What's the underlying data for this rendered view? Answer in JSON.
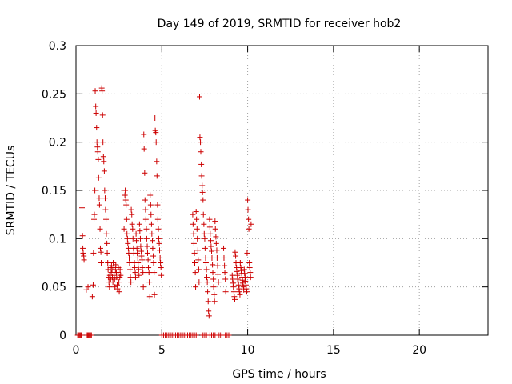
{
  "chart_data": {
    "type": "scatter",
    "title": "Day 149 of 2019, SRMTID for receiver hob2",
    "xlabel": "GPS time / hours",
    "ylabel": "SRMTID / TECUs",
    "xlim": [
      0,
      24
    ],
    "ylim": [
      0,
      0.3
    ],
    "x_ticks": [
      0,
      5,
      10,
      15,
      20
    ],
    "x_tick_labels": [
      "0",
      "5",
      "10",
      "15",
      "20"
    ],
    "y_ticks": [
      0,
      0.05,
      0.1,
      0.15,
      0.2,
      0.25,
      0.3
    ],
    "y_tick_labels": [
      "0",
      "0.05",
      "0.1",
      "0.15",
      "0.2",
      "0.25",
      "0.3"
    ],
    "grid": true,
    "marker": "+",
    "color": "#cc0000",
    "series": [
      {
        "name": "SRMTID",
        "points": [
          [
            0.1,
            0.0
          ],
          [
            0.15,
            0.0
          ],
          [
            0.2,
            0.0
          ],
          [
            0.25,
            0.0
          ],
          [
            0.3,
            0.0
          ],
          [
            0.65,
            0.0
          ],
          [
            0.7,
            0.0
          ],
          [
            0.75,
            0.0
          ],
          [
            0.8,
            0.0
          ],
          [
            0.85,
            0.0
          ],
          [
            0.9,
            0.0
          ],
          [
            0.35,
            0.132
          ],
          [
            0.38,
            0.103
          ],
          [
            0.4,
            0.09
          ],
          [
            0.42,
            0.085
          ],
          [
            0.45,
            0.082
          ],
          [
            0.47,
            0.078
          ],
          [
            0.6,
            0.047
          ],
          [
            0.7,
            0.05
          ],
          [
            0.95,
            0.04
          ],
          [
            1.0,
            0.052
          ],
          [
            1.02,
            0.085
          ],
          [
            1.05,
            0.12
          ],
          [
            1.07,
            0.125
          ],
          [
            1.1,
            0.15
          ],
          [
            1.12,
            0.253
          ],
          [
            1.15,
            0.237
          ],
          [
            1.17,
            0.23
          ],
          [
            1.2,
            0.215
          ],
          [
            1.22,
            0.2
          ],
          [
            1.25,
            0.195
          ],
          [
            1.27,
            0.19
          ],
          [
            1.3,
            0.182
          ],
          [
            1.32,
            0.163
          ],
          [
            1.35,
            0.142
          ],
          [
            1.37,
            0.135
          ],
          [
            1.4,
            0.11
          ],
          [
            1.42,
            0.09
          ],
          [
            1.45,
            0.086
          ],
          [
            1.47,
            0.075
          ],
          [
            1.5,
            0.256
          ],
          [
            1.52,
            0.253
          ],
          [
            1.55,
            0.228
          ],
          [
            1.57,
            0.2
          ],
          [
            1.6,
            0.185
          ],
          [
            1.62,
            0.18
          ],
          [
            1.65,
            0.17
          ],
          [
            1.67,
            0.15
          ],
          [
            1.7,
            0.142
          ],
          [
            1.72,
            0.13
          ],
          [
            1.75,
            0.12
          ],
          [
            1.77,
            0.105
          ],
          [
            1.8,
            0.095
          ],
          [
            1.82,
            0.085
          ],
          [
            1.85,
            0.075
          ],
          [
            1.87,
            0.068
          ],
          [
            1.9,
            0.06
          ],
          [
            1.92,
            0.055
          ],
          [
            1.95,
            0.05
          ],
          [
            1.97,
            0.062
          ],
          [
            2.0,
            0.07
          ],
          [
            2.02,
            0.058
          ],
          [
            2.05,
            0.065
          ],
          [
            2.07,
            0.072
          ],
          [
            2.1,
            0.068
          ],
          [
            2.12,
            0.06
          ],
          [
            2.15,
            0.055
          ],
          [
            2.17,
            0.075
          ],
          [
            2.2,
            0.07
          ],
          [
            2.22,
            0.062
          ],
          [
            2.25,
            0.058
          ],
          [
            2.27,
            0.05
          ],
          [
            2.3,
            0.068
          ],
          [
            2.32,
            0.073
          ],
          [
            2.35,
            0.065
          ],
          [
            2.37,
            0.06
          ],
          [
            2.4,
            0.052
          ],
          [
            2.42,
            0.048
          ],
          [
            2.45,
            0.065
          ],
          [
            2.47,
            0.07
          ],
          [
            2.5,
            0.055
          ],
          [
            2.52,
            0.045
          ],
          [
            2.55,
            0.06
          ],
          [
            2.57,
            0.068
          ],
          [
            2.6,
            0.062
          ],
          [
            2.8,
            0.11
          ],
          [
            2.85,
            0.145
          ],
          [
            2.87,
            0.15
          ],
          [
            2.9,
            0.14
          ],
          [
            2.92,
            0.135
          ],
          [
            2.95,
            0.12
          ],
          [
            2.97,
            0.105
          ],
          [
            3.0,
            0.1
          ],
          [
            3.02,
            0.095
          ],
          [
            3.05,
            0.09
          ],
          [
            3.07,
            0.085
          ],
          [
            3.1,
            0.08
          ],
          [
            3.12,
            0.075
          ],
          [
            3.15,
            0.068
          ],
          [
            3.17,
            0.06
          ],
          [
            3.2,
            0.055
          ],
          [
            3.22,
            0.13
          ],
          [
            3.25,
            0.125
          ],
          [
            3.27,
            0.115
          ],
          [
            3.3,
            0.11
          ],
          [
            3.32,
            0.1
          ],
          [
            3.35,
            0.09
          ],
          [
            3.37,
            0.085
          ],
          [
            3.4,
            0.075
          ],
          [
            3.42,
            0.07
          ],
          [
            3.45,
            0.065
          ],
          [
            3.47,
            0.06
          ],
          [
            3.5,
            0.105
          ],
          [
            3.52,
            0.098
          ],
          [
            3.55,
            0.09
          ],
          [
            3.57,
            0.085
          ],
          [
            3.6,
            0.08
          ],
          [
            3.62,
            0.075
          ],
          [
            3.65,
            0.068
          ],
          [
            3.67,
            0.062
          ],
          [
            3.7,
            0.115
          ],
          [
            3.72,
            0.108
          ],
          [
            3.75,
            0.1
          ],
          [
            3.77,
            0.092
          ],
          [
            3.8,
            0.087
          ],
          [
            3.82,
            0.082
          ],
          [
            3.85,
            0.078
          ],
          [
            3.87,
            0.07
          ],
          [
            3.9,
            0.065
          ],
          [
            3.92,
            0.05
          ],
          [
            3.95,
            0.208
          ],
          [
            3.97,
            0.193
          ],
          [
            4.0,
            0.168
          ],
          [
            4.02,
            0.14
          ],
          [
            4.05,
            0.13
          ],
          [
            4.07,
            0.12
          ],
          [
            4.1,
            0.11
          ],
          [
            4.12,
            0.1
          ],
          [
            4.15,
            0.092
          ],
          [
            4.17,
            0.085
          ],
          [
            4.2,
            0.078
          ],
          [
            4.22,
            0.07
          ],
          [
            4.25,
            0.065
          ],
          [
            4.27,
            0.055
          ],
          [
            4.3,
            0.04
          ],
          [
            4.32,
            0.145
          ],
          [
            4.35,
            0.135
          ],
          [
            4.37,
            0.125
          ],
          [
            4.4,
            0.115
          ],
          [
            4.42,
            0.105
          ],
          [
            4.45,
            0.098
          ],
          [
            4.47,
            0.09
          ],
          [
            4.5,
            0.082
          ],
          [
            4.52,
            0.075
          ],
          [
            4.55,
            0.065
          ],
          [
            4.57,
            0.042
          ],
          [
            4.6,
            0.225
          ],
          [
            4.62,
            0.212
          ],
          [
            4.65,
            0.21
          ],
          [
            4.67,
            0.2
          ],
          [
            4.7,
            0.18
          ],
          [
            4.72,
            0.165
          ],
          [
            4.75,
            0.135
          ],
          [
            4.77,
            0.12
          ],
          [
            4.8,
            0.11
          ],
          [
            4.82,
            0.1
          ],
          [
            4.85,
            0.095
          ],
          [
            4.87,
            0.088
          ],
          [
            4.9,
            0.08
          ],
          [
            4.92,
            0.075
          ],
          [
            4.95,
            0.07
          ],
          [
            4.97,
            0.062
          ],
          [
            5.0,
            0.0
          ],
          [
            5.1,
            0.0
          ],
          [
            5.2,
            0.0
          ],
          [
            5.3,
            0.0
          ],
          [
            5.4,
            0.0
          ],
          [
            5.5,
            0.0
          ],
          [
            5.6,
            0.0
          ],
          [
            5.7,
            0.0
          ],
          [
            5.8,
            0.0
          ],
          [
            5.9,
            0.0
          ],
          [
            6.0,
            0.0
          ],
          [
            6.1,
            0.0
          ],
          [
            6.2,
            0.0
          ],
          [
            6.3,
            0.0
          ],
          [
            6.4,
            0.0
          ],
          [
            6.5,
            0.0
          ],
          [
            6.6,
            0.0
          ],
          [
            6.7,
            0.0
          ],
          [
            6.8,
            0.0
          ],
          [
            6.9,
            0.0
          ],
          [
            7.0,
            0.0
          ],
          [
            7.4,
            0.0
          ],
          [
            7.5,
            0.0
          ],
          [
            7.6,
            0.0
          ],
          [
            7.8,
            0.0
          ],
          [
            7.9,
            0.0
          ],
          [
            8.0,
            0.0
          ],
          [
            8.1,
            0.0
          ],
          [
            8.3,
            0.0
          ],
          [
            8.4,
            0.0
          ],
          [
            8.5,
            0.0
          ],
          [
            8.7,
            0.0
          ],
          [
            8.8,
            0.0
          ],
          [
            8.9,
            0.0
          ],
          [
            6.8,
            0.125
          ],
          [
            6.82,
            0.115
          ],
          [
            6.85,
            0.105
          ],
          [
            6.87,
            0.095
          ],
          [
            6.9,
            0.085
          ],
          [
            6.92,
            0.075
          ],
          [
            6.95,
            0.065
          ],
          [
            6.97,
            0.05
          ],
          [
            7.0,
            0.128
          ],
          [
            7.02,
            0.12
          ],
          [
            7.05,
            0.11
          ],
          [
            7.07,
            0.1
          ],
          [
            7.1,
            0.088
          ],
          [
            7.12,
            0.078
          ],
          [
            7.15,
            0.068
          ],
          [
            7.17,
            0.055
          ],
          [
            7.2,
            0.247
          ],
          [
            7.22,
            0.205
          ],
          [
            7.25,
            0.2
          ],
          [
            7.27,
            0.19
          ],
          [
            7.3,
            0.177
          ],
          [
            7.32,
            0.165
          ],
          [
            7.35,
            0.155
          ],
          [
            7.37,
            0.148
          ],
          [
            7.4,
            0.14
          ],
          [
            7.42,
            0.125
          ],
          [
            7.45,
            0.115
          ],
          [
            7.47,
            0.105
          ],
          [
            7.5,
            0.1
          ],
          [
            7.52,
            0.09
          ],
          [
            7.55,
            0.08
          ],
          [
            7.57,
            0.075
          ],
          [
            7.6,
            0.068
          ],
          [
            7.62,
            0.06
          ],
          [
            7.65,
            0.055
          ],
          [
            7.67,
            0.045
          ],
          [
            7.7,
            0.035
          ],
          [
            7.72,
            0.025
          ],
          [
            7.75,
            0.02
          ],
          [
            7.78,
            0.12
          ],
          [
            7.8,
            0.112
          ],
          [
            7.82,
            0.105
          ],
          [
            7.85,
            0.098
          ],
          [
            7.87,
            0.092
          ],
          [
            7.9,
            0.087
          ],
          [
            7.92,
            0.08
          ],
          [
            7.95,
            0.073
          ],
          [
            7.97,
            0.065
          ],
          [
            8.0,
            0.058
          ],
          [
            8.02,
            0.05
          ],
          [
            8.05,
            0.042
          ],
          [
            8.07,
            0.035
          ],
          [
            8.1,
            0.118
          ],
          [
            8.12,
            0.11
          ],
          [
            8.15,
            0.102
          ],
          [
            8.17,
            0.095
          ],
          [
            8.2,
            0.088
          ],
          [
            8.22,
            0.08
          ],
          [
            8.25,
            0.072
          ],
          [
            8.27,
            0.063
          ],
          [
            8.3,
            0.055
          ],
          [
            8.6,
            0.09
          ],
          [
            8.62,
            0.08
          ],
          [
            8.65,
            0.072
          ],
          [
            8.67,
            0.065
          ],
          [
            8.7,
            0.058
          ],
          [
            8.72,
            0.045
          ],
          [
            9.1,
            0.062
          ],
          [
            9.12,
            0.058
          ],
          [
            9.15,
            0.054
          ],
          [
            9.17,
            0.05
          ],
          [
            9.2,
            0.045
          ],
          [
            9.22,
            0.04
          ],
          [
            9.25,
            0.037
          ],
          [
            9.27,
            0.086
          ],
          [
            9.3,
            0.082
          ],
          [
            9.32,
            0.075
          ],
          [
            9.35,
            0.07
          ],
          [
            9.37,
            0.066
          ],
          [
            9.4,
            0.062
          ],
          [
            9.42,
            0.058
          ],
          [
            9.45,
            0.055
          ],
          [
            9.47,
            0.052
          ],
          [
            9.5,
            0.048
          ],
          [
            9.52,
            0.045
          ],
          [
            9.55,
            0.042
          ],
          [
            9.57,
            0.075
          ],
          [
            9.6,
            0.07
          ],
          [
            9.62,
            0.067
          ],
          [
            9.65,
            0.064
          ],
          [
            9.67,
            0.06
          ],
          [
            9.7,
            0.057
          ],
          [
            9.72,
            0.054
          ],
          [
            9.75,
            0.05
          ],
          [
            9.77,
            0.047
          ],
          [
            9.8,
            0.068
          ],
          [
            9.82,
            0.064
          ],
          [
            9.85,
            0.06
          ],
          [
            9.87,
            0.056
          ],
          [
            9.9,
            0.052
          ],
          [
            9.92,
            0.048
          ],
          [
            9.95,
            0.045
          ],
          [
            9.97,
            0.085
          ],
          [
            10.0,
            0.14
          ],
          [
            10.02,
            0.13
          ],
          [
            10.05,
            0.12
          ],
          [
            10.07,
            0.11
          ],
          [
            10.1,
            0.075
          ],
          [
            10.12,
            0.07
          ],
          [
            10.15,
            0.065
          ],
          [
            10.17,
            0.06
          ],
          [
            10.2,
            0.115
          ]
        ]
      }
    ]
  }
}
